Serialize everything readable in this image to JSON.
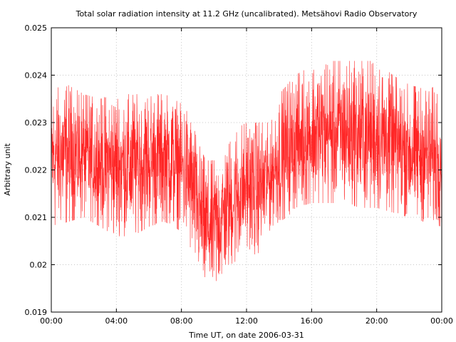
{
  "chart_data": {
    "type": "line",
    "title": "Total solar radiation intensity at 11.2 GHz (uncalibrated). Metsähovi Radio Observatory",
    "xlabel": "Time UT, on date 2006-03-31",
    "ylabel": "Arbitrary unit",
    "x_ticks": [
      "00:00",
      "04:00",
      "08:00",
      "12:00",
      "16:00",
      "20:00",
      "00:00"
    ],
    "x_tick_hours": [
      0,
      4,
      8,
      12,
      16,
      20,
      24
    ],
    "xlim": [
      0,
      24
    ],
    "y_ticks": [
      "0.019",
      "0.02",
      "0.021",
      "0.022",
      "0.023",
      "0.024",
      "0.025"
    ],
    "y_tick_values": [
      0.019,
      0.02,
      0.021,
      0.022,
      0.023,
      0.024,
      0.025
    ],
    "ylim": [
      0.019,
      0.025
    ],
    "grid": true,
    "series_color": "#ff0000",
    "envelope_hours": [
      0,
      1,
      2,
      3,
      4,
      5,
      6,
      7,
      8,
      8.5,
      9,
      9.5,
      10,
      10.5,
      11,
      11.5,
      12,
      12.5,
      13,
      13.5,
      14,
      14.5,
      15,
      16,
      17,
      18,
      19,
      20,
      21,
      22,
      23,
      24
    ],
    "envelope_upper": [
      0.0237,
      0.0238,
      0.0236,
      0.0235,
      0.0236,
      0.0236,
      0.0236,
      0.0236,
      0.0234,
      0.0232,
      0.0226,
      0.0222,
      0.0222,
      0.0223,
      0.0226,
      0.0229,
      0.023,
      0.023,
      0.023,
      0.023,
      0.0236,
      0.0238,
      0.024,
      0.0242,
      0.0243,
      0.0243,
      0.0243,
      0.0243,
      0.024,
      0.0238,
      0.0237,
      0.0238
    ],
    "envelope_lower": [
      0.0208,
      0.0209,
      0.021,
      0.0208,
      0.0206,
      0.0206,
      0.0208,
      0.0209,
      0.0207,
      0.0204,
      0.0198,
      0.0194,
      0.0194,
      0.0197,
      0.02,
      0.0201,
      0.0204,
      0.0202,
      0.0203,
      0.0208,
      0.0209,
      0.021,
      0.0212,
      0.0213,
      0.0213,
      0.0213,
      0.0212,
      0.0212,
      0.0211,
      0.021,
      0.0209,
      0.0208
    ]
  }
}
